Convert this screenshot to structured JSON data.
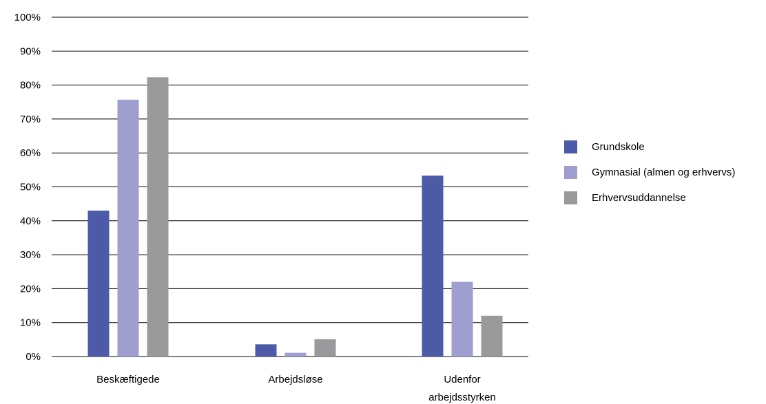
{
  "chart_data": {
    "type": "bar",
    "title": "",
    "xlabel": "",
    "ylabel": "",
    "ylim": [
      0,
      100
    ],
    "y_ticks": [
      "0%",
      "10%",
      "20%",
      "30%",
      "40%",
      "50%",
      "60%",
      "70%",
      "80%",
      "90%",
      "100%"
    ],
    "grid": true,
    "legend_position": "right",
    "categories": [
      [
        "Beskæftigede"
      ],
      [
        "Arbejdsløse"
      ],
      [
        "Udenfor",
        "arbejdsstyrken"
      ]
    ],
    "series": [
      {
        "name": "Grundskole",
        "color": "#4c5aa8",
        "values": [
          43,
          3.6,
          53.3
        ]
      },
      {
        "name": "Gymnasial (almen og erhvervs)",
        "color": "#9e9ecf",
        "values": [
          75.7,
          1.1,
          22
        ]
      },
      {
        "name": "Erhvervsuddannelse",
        "color": "#9a9a9d",
        "values": [
          82.3,
          5.1,
          12
        ]
      }
    ]
  }
}
